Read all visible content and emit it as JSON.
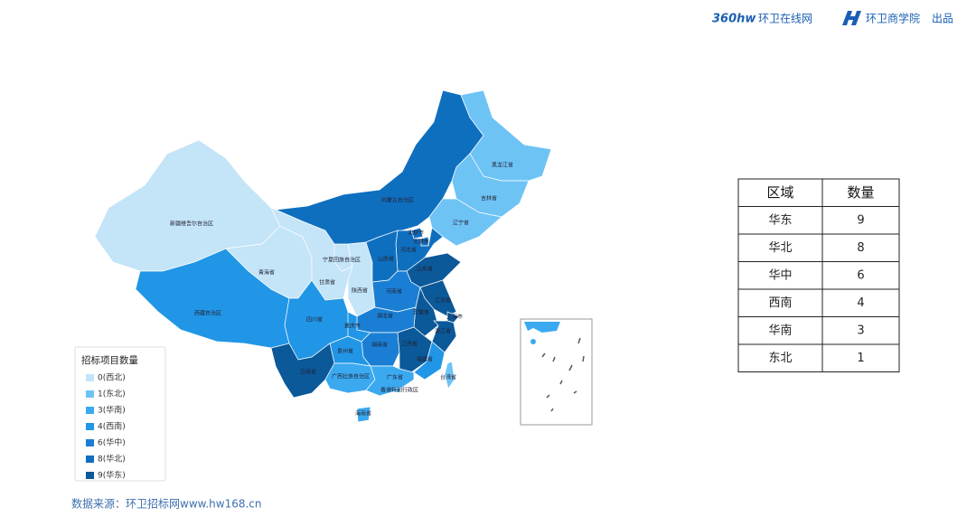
{
  "header": {
    "logo": "360hw",
    "site": "环卫在线网",
    "brand": "环卫商学院",
    "note": "出品"
  },
  "map": {
    "provinces": [
      {
        "name": "新疆维吾尔自治区",
        "color": "#c4e4f8"
      },
      {
        "name": "西藏自治区",
        "color": "#2196e6"
      },
      {
        "name": "青海省",
        "color": "#c4e4f8"
      },
      {
        "name": "甘肃省",
        "color": "#c4e4f8"
      },
      {
        "name": "宁夏回族自治区",
        "color": "#c4e4f8"
      },
      {
        "name": "陕西省",
        "color": "#c4e4f8"
      },
      {
        "name": "内蒙古自治区",
        "color": "#0f6fbf"
      },
      {
        "name": "黑龙江省",
        "color": "#6ec3f5"
      },
      {
        "name": "吉林省",
        "color": "#6ec3f5"
      },
      {
        "name": "辽宁省",
        "color": "#6ec3f5"
      },
      {
        "name": "北京市",
        "color": "#0f6fbf"
      },
      {
        "name": "天津市",
        "color": "#0f6fbf"
      },
      {
        "name": "河北省",
        "color": "#0f6fbf"
      },
      {
        "name": "山西省",
        "color": "#0f6fbf"
      },
      {
        "name": "山东省",
        "color": "#0b5999"
      },
      {
        "name": "河南省",
        "color": "#1a7fd4"
      },
      {
        "name": "江苏省",
        "color": "#0b5999"
      },
      {
        "name": "安徽省",
        "color": "#0b5999"
      },
      {
        "name": "上海市",
        "color": "#0b5999"
      },
      {
        "name": "湖北省",
        "color": "#1a7fd4"
      },
      {
        "name": "四川省",
        "color": "#2196e6"
      },
      {
        "name": "重庆市",
        "color": "#2196e6"
      },
      {
        "name": "浙江省",
        "color": "#0b5999"
      },
      {
        "name": "湖南省",
        "color": "#1a7fd4"
      },
      {
        "name": "江西省",
        "color": "#0b5999"
      },
      {
        "name": "贵州省",
        "color": "#2196e6"
      },
      {
        "name": "云南省",
        "color": "#2196e6"
      },
      {
        "name": "福建省",
        "color": "#0b5999"
      },
      {
        "name": "广西壮族自治区",
        "color": "#3aa9f0"
      },
      {
        "name": "广东省",
        "color": "#3aa9f0"
      },
      {
        "name": "台湾省",
        "color": "#6ec3f5"
      },
      {
        "name": "海南省",
        "color": "#3aa9f0"
      },
      {
        "name": "香港特别行政区",
        "color": "#3aa9f0"
      }
    ]
  },
  "legend": {
    "title": "招标项目数量",
    "items": [
      {
        "label": "0(西北)",
        "color": "#c4e4f8"
      },
      {
        "label": "1(东北)",
        "color": "#6ec3f5"
      },
      {
        "label": "3(华南)",
        "color": "#3aa9f0"
      },
      {
        "label": "4(西南)",
        "color": "#2196e6"
      },
      {
        "label": "6(华中)",
        "color": "#1a7fd4"
      },
      {
        "label": "8(华北)",
        "color": "#0f6fbf"
      },
      {
        "label": "9(华东)",
        "color": "#0b5999"
      }
    ]
  },
  "table": {
    "header": [
      "区域",
      "数量"
    ],
    "rows": [
      [
        "华东",
        "9"
      ],
      [
        "华北",
        "8"
      ],
      [
        "华中",
        "6"
      ],
      [
        "西南",
        "4"
      ],
      [
        "华南",
        "3"
      ],
      [
        "东北",
        "1"
      ]
    ]
  },
  "source": "数据来源：环卫招标网www.hw168.cn"
}
